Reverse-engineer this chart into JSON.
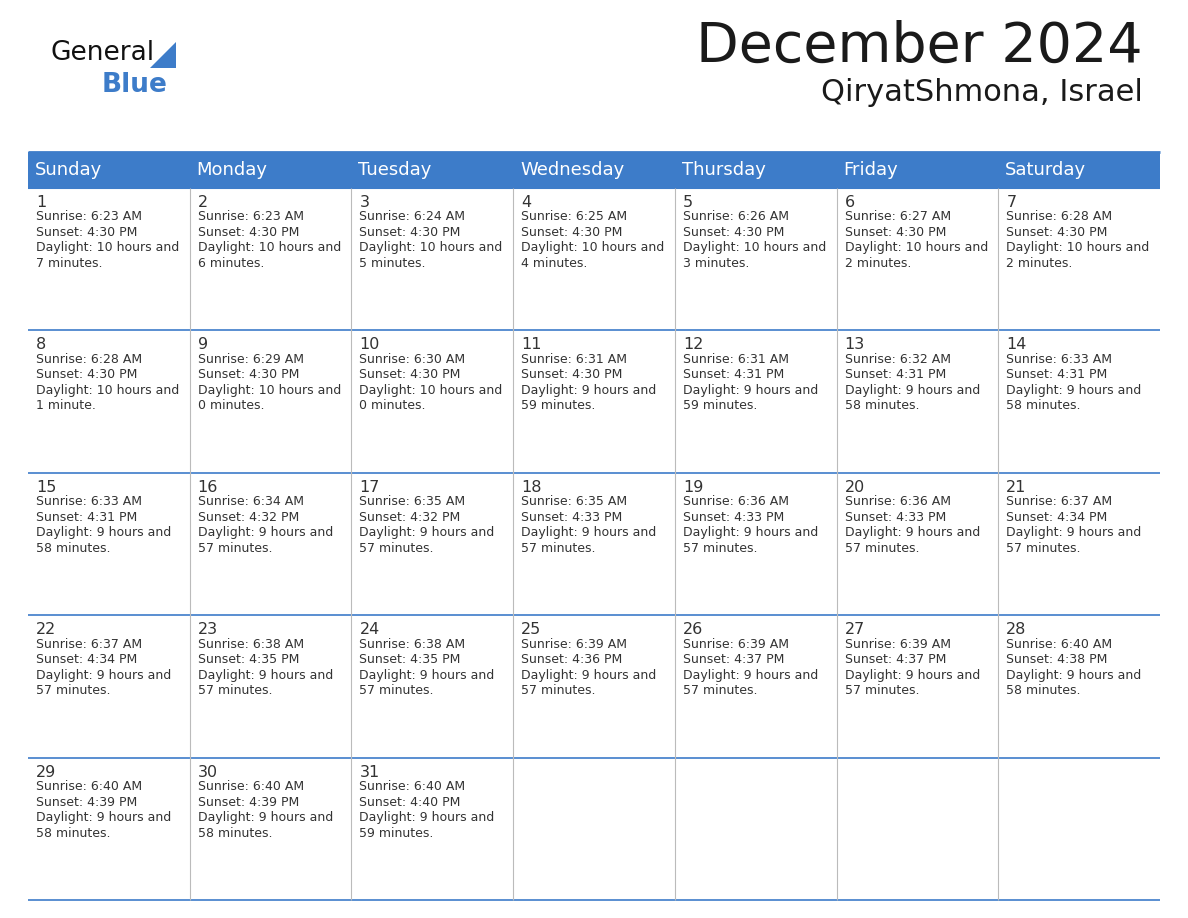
{
  "title": "December 2024",
  "subtitle": "QiryatShmona, Israel",
  "header_color": "#3D7CC9",
  "header_text_color": "#FFFFFF",
  "border_color": "#3D7CC9",
  "grid_line_color": "#AAAAAA",
  "day_names": [
    "Sunday",
    "Monday",
    "Tuesday",
    "Wednesday",
    "Thursday",
    "Friday",
    "Saturday"
  ],
  "title_color": "#1a1a1a",
  "subtitle_color": "#1a1a1a",
  "text_color": "#333333",
  "days": [
    {
      "day": 1,
      "col": 0,
      "row": 0,
      "sunrise": "6:23 AM",
      "sunset": "4:30 PM",
      "daylight": "10 hours and 7 minutes."
    },
    {
      "day": 2,
      "col": 1,
      "row": 0,
      "sunrise": "6:23 AM",
      "sunset": "4:30 PM",
      "daylight": "10 hours and 6 minutes."
    },
    {
      "day": 3,
      "col": 2,
      "row": 0,
      "sunrise": "6:24 AM",
      "sunset": "4:30 PM",
      "daylight": "10 hours and 5 minutes."
    },
    {
      "day": 4,
      "col": 3,
      "row": 0,
      "sunrise": "6:25 AM",
      "sunset": "4:30 PM",
      "daylight": "10 hours and 4 minutes."
    },
    {
      "day": 5,
      "col": 4,
      "row": 0,
      "sunrise": "6:26 AM",
      "sunset": "4:30 PM",
      "daylight": "10 hours and 3 minutes."
    },
    {
      "day": 6,
      "col": 5,
      "row": 0,
      "sunrise": "6:27 AM",
      "sunset": "4:30 PM",
      "daylight": "10 hours and 2 minutes."
    },
    {
      "day": 7,
      "col": 6,
      "row": 0,
      "sunrise": "6:28 AM",
      "sunset": "4:30 PM",
      "daylight": "10 hours and 2 minutes."
    },
    {
      "day": 8,
      "col": 0,
      "row": 1,
      "sunrise": "6:28 AM",
      "sunset": "4:30 PM",
      "daylight": "10 hours and 1 minute."
    },
    {
      "day": 9,
      "col": 1,
      "row": 1,
      "sunrise": "6:29 AM",
      "sunset": "4:30 PM",
      "daylight": "10 hours and 0 minutes."
    },
    {
      "day": 10,
      "col": 2,
      "row": 1,
      "sunrise": "6:30 AM",
      "sunset": "4:30 PM",
      "daylight": "10 hours and 0 minutes."
    },
    {
      "day": 11,
      "col": 3,
      "row": 1,
      "sunrise": "6:31 AM",
      "sunset": "4:30 PM",
      "daylight": "9 hours and 59 minutes."
    },
    {
      "day": 12,
      "col": 4,
      "row": 1,
      "sunrise": "6:31 AM",
      "sunset": "4:31 PM",
      "daylight": "9 hours and 59 minutes."
    },
    {
      "day": 13,
      "col": 5,
      "row": 1,
      "sunrise": "6:32 AM",
      "sunset": "4:31 PM",
      "daylight": "9 hours and 58 minutes."
    },
    {
      "day": 14,
      "col": 6,
      "row": 1,
      "sunrise": "6:33 AM",
      "sunset": "4:31 PM",
      "daylight": "9 hours and 58 minutes."
    },
    {
      "day": 15,
      "col": 0,
      "row": 2,
      "sunrise": "6:33 AM",
      "sunset": "4:31 PM",
      "daylight": "9 hours and 58 minutes."
    },
    {
      "day": 16,
      "col": 1,
      "row": 2,
      "sunrise": "6:34 AM",
      "sunset": "4:32 PM",
      "daylight": "9 hours and 57 minutes."
    },
    {
      "day": 17,
      "col": 2,
      "row": 2,
      "sunrise": "6:35 AM",
      "sunset": "4:32 PM",
      "daylight": "9 hours and 57 minutes."
    },
    {
      "day": 18,
      "col": 3,
      "row": 2,
      "sunrise": "6:35 AM",
      "sunset": "4:33 PM",
      "daylight": "9 hours and 57 minutes."
    },
    {
      "day": 19,
      "col": 4,
      "row": 2,
      "sunrise": "6:36 AM",
      "sunset": "4:33 PM",
      "daylight": "9 hours and 57 minutes."
    },
    {
      "day": 20,
      "col": 5,
      "row": 2,
      "sunrise": "6:36 AM",
      "sunset": "4:33 PM",
      "daylight": "9 hours and 57 minutes."
    },
    {
      "day": 21,
      "col": 6,
      "row": 2,
      "sunrise": "6:37 AM",
      "sunset": "4:34 PM",
      "daylight": "9 hours and 57 minutes."
    },
    {
      "day": 22,
      "col": 0,
      "row": 3,
      "sunrise": "6:37 AM",
      "sunset": "4:34 PM",
      "daylight": "9 hours and 57 minutes."
    },
    {
      "day": 23,
      "col": 1,
      "row": 3,
      "sunrise": "6:38 AM",
      "sunset": "4:35 PM",
      "daylight": "9 hours and 57 minutes."
    },
    {
      "day": 24,
      "col": 2,
      "row": 3,
      "sunrise": "6:38 AM",
      "sunset": "4:35 PM",
      "daylight": "9 hours and 57 minutes."
    },
    {
      "day": 25,
      "col": 3,
      "row": 3,
      "sunrise": "6:39 AM",
      "sunset": "4:36 PM",
      "daylight": "9 hours and 57 minutes."
    },
    {
      "day": 26,
      "col": 4,
      "row": 3,
      "sunrise": "6:39 AM",
      "sunset": "4:37 PM",
      "daylight": "9 hours and 57 minutes."
    },
    {
      "day": 27,
      "col": 5,
      "row": 3,
      "sunrise": "6:39 AM",
      "sunset": "4:37 PM",
      "daylight": "9 hours and 57 minutes."
    },
    {
      "day": 28,
      "col": 6,
      "row": 3,
      "sunrise": "6:40 AM",
      "sunset": "4:38 PM",
      "daylight": "9 hours and 58 minutes."
    },
    {
      "day": 29,
      "col": 0,
      "row": 4,
      "sunrise": "6:40 AM",
      "sunset": "4:39 PM",
      "daylight": "9 hours and 58 minutes."
    },
    {
      "day": 30,
      "col": 1,
      "row": 4,
      "sunrise": "6:40 AM",
      "sunset": "4:39 PM",
      "daylight": "9 hours and 58 minutes."
    },
    {
      "day": 31,
      "col": 2,
      "row": 4,
      "sunrise": "6:40 AM",
      "sunset": "4:40 PM",
      "daylight": "9 hours and 59 minutes."
    }
  ]
}
